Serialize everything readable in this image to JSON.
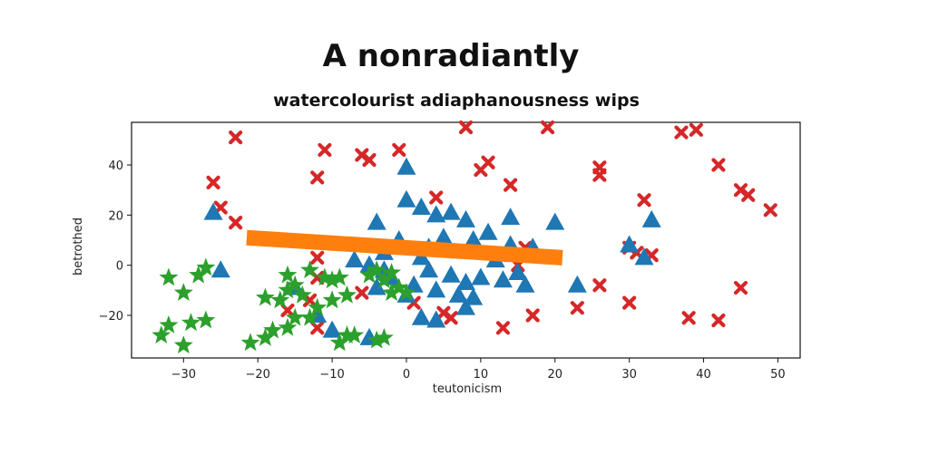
{
  "chart_data": {
    "type": "scatter",
    "title": "A nonradiantly",
    "subtitle": "watercolourist adiaphanousness wips",
    "xlabel": "teutonicism",
    "ylabel": "betrothed",
    "xlim": [
      -37,
      53
    ],
    "ylim": [
      -37,
      57
    ],
    "xticks": [
      -30,
      -20,
      -10,
      0,
      10,
      20,
      30,
      40,
      50
    ],
    "yticks": [
      -20,
      0,
      20,
      40
    ],
    "grid": false,
    "series": [
      {
        "marker": "x",
        "color": "#d62728",
        "points": [
          [
            -23,
            51
          ],
          [
            -26,
            33
          ],
          [
            -25,
            23
          ],
          [
            -23,
            17
          ],
          [
            -11,
            46
          ],
          [
            -12,
            35
          ],
          [
            -6,
            44
          ],
          [
            -5,
            42
          ],
          [
            -1,
            46
          ],
          [
            4,
            27
          ],
          [
            8,
            55
          ],
          [
            10,
            38
          ],
          [
            11,
            41
          ],
          [
            14,
            32
          ],
          [
            19,
            55
          ],
          [
            26,
            39
          ],
          [
            26,
            36
          ],
          [
            32,
            26
          ],
          [
            37,
            53
          ],
          [
            39,
            54
          ],
          [
            42,
            40
          ],
          [
            45,
            30
          ],
          [
            46,
            28
          ],
          [
            49,
            22
          ],
          [
            33,
            4
          ],
          [
            30,
            7
          ],
          [
            31,
            5
          ],
          [
            -12,
            3
          ],
          [
            -12,
            -5
          ],
          [
            -6,
            -11
          ],
          [
            -13,
            -14
          ],
          [
            -16,
            -18
          ],
          [
            1,
            -15
          ],
          [
            5,
            -19
          ],
          [
            6,
            -21
          ],
          [
            15,
            0
          ],
          [
            16,
            7
          ],
          [
            13,
            -25
          ],
          [
            17,
            -20
          ],
          [
            23,
            -17
          ],
          [
            26,
            -8
          ],
          [
            30,
            -15
          ],
          [
            38,
            -21
          ],
          [
            42,
            -22
          ],
          [
            45,
            -9
          ],
          [
            14,
            4
          ],
          [
            -12,
            -25
          ]
        ]
      },
      {
        "marker": "^",
        "color": "#1f77b4",
        "points": [
          [
            0,
            39
          ],
          [
            -26,
            21
          ],
          [
            -25,
            -2
          ],
          [
            0,
            26
          ],
          [
            2,
            23
          ],
          [
            4,
            20
          ],
          [
            6,
            21
          ],
          [
            8,
            18
          ],
          [
            14,
            19
          ],
          [
            20,
            17
          ],
          [
            -4,
            17
          ],
          [
            33,
            18
          ],
          [
            30,
            8
          ],
          [
            32,
            3
          ],
          [
            11,
            13
          ],
          [
            9,
            10
          ],
          [
            5,
            11
          ],
          [
            3,
            7
          ],
          [
            2,
            3
          ],
          [
            -1,
            10
          ],
          [
            -3,
            5
          ],
          [
            -5,
            0
          ],
          [
            -7,
            2
          ],
          [
            -3,
            -2
          ],
          [
            -2,
            -5
          ],
          [
            1,
            -8
          ],
          [
            4,
            -10
          ],
          [
            6,
            -4
          ],
          [
            8,
            -7
          ],
          [
            3,
            -2
          ],
          [
            7,
            -12
          ],
          [
            10,
            -5
          ],
          [
            13,
            -6
          ],
          [
            15,
            -3
          ],
          [
            16,
            -8
          ],
          [
            17,
            7
          ],
          [
            23,
            -8
          ],
          [
            -15,
            -9
          ],
          [
            -12,
            -20
          ],
          [
            -10,
            -26
          ],
          [
            -5,
            -29
          ],
          [
            -4,
            -9
          ],
          [
            0,
            -12
          ],
          [
            2,
            -21
          ],
          [
            4,
            -22
          ],
          [
            8,
            -17
          ],
          [
            9,
            -13
          ],
          [
            12,
            2
          ],
          [
            14,
            8
          ]
        ]
      },
      {
        "marker": "*",
        "color": "#2ca02c",
        "points": [
          [
            -32,
            -5
          ],
          [
            -30,
            -11
          ],
          [
            -28,
            -4
          ],
          [
            -27,
            -1
          ],
          [
            -29,
            -23
          ],
          [
            -27,
            -22
          ],
          [
            -33,
            -28
          ],
          [
            -32,
            -24
          ],
          [
            -30,
            -32
          ],
          [
            -21,
            -31
          ],
          [
            -19,
            -29
          ],
          [
            -18,
            -26
          ],
          [
            -17,
            -14
          ],
          [
            -19,
            -13
          ],
          [
            -16,
            -10
          ],
          [
            -15,
            -8
          ],
          [
            -16,
            -4
          ],
          [
            -14,
            -12
          ],
          [
            -13,
            -2
          ],
          [
            -11,
            -5
          ],
          [
            -10,
            -6
          ],
          [
            -9,
            -5
          ],
          [
            -10,
            -14
          ],
          [
            -8,
            -12
          ],
          [
            -12,
            -17
          ],
          [
            -15,
            -21
          ],
          [
            -13,
            -21
          ],
          [
            -16,
            -25
          ],
          [
            -8,
            -28
          ],
          [
            -9,
            -31
          ],
          [
            -7,
            -28
          ],
          [
            -4,
            -30
          ],
          [
            -3,
            -29
          ],
          [
            -5,
            -4
          ],
          [
            -4,
            -2
          ],
          [
            -3,
            -6
          ],
          [
            -2,
            -3
          ],
          [
            -1,
            -9
          ],
          [
            0,
            -11
          ],
          [
            -2,
            -11
          ]
        ]
      },
      {
        "type": "line",
        "color": "#ff7f0e",
        "points": [
          [
            -21.5,
            11
          ],
          [
            21,
            3
          ]
        ]
      }
    ]
  }
}
